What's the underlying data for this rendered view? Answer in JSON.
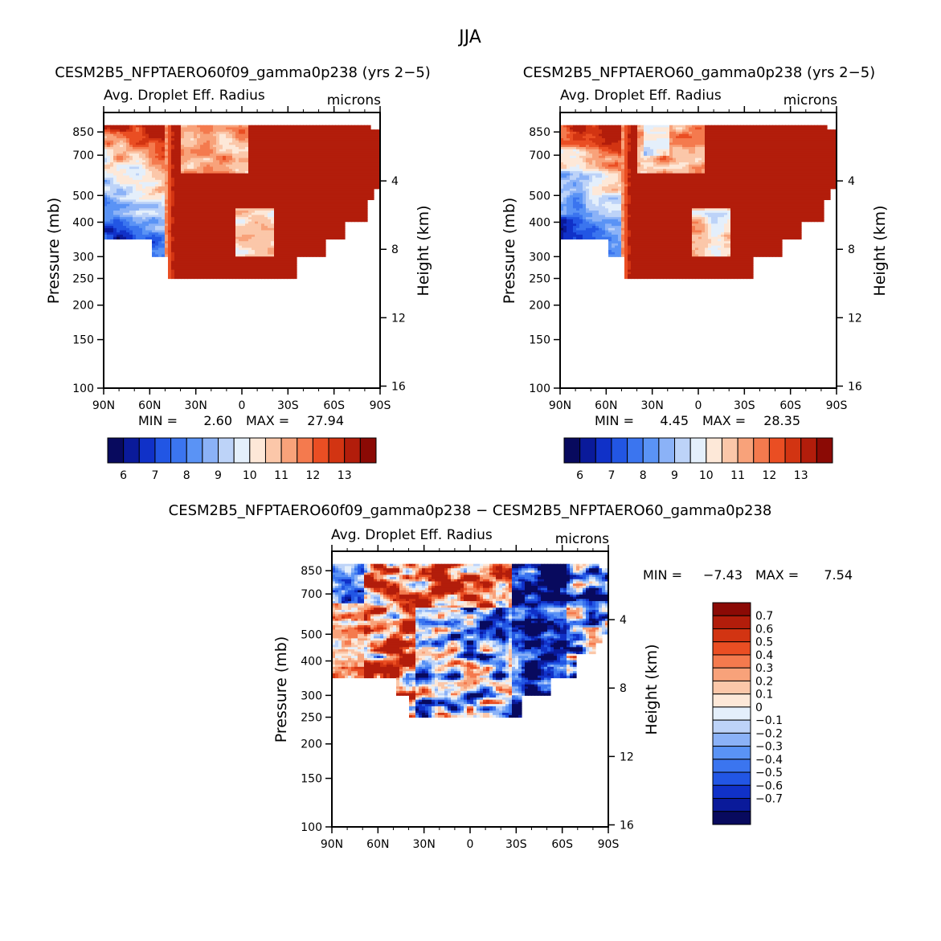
{
  "season": "JJA",
  "chart_data": [
    {
      "type": "heatmap",
      "panel": "case-a",
      "title": "CESM2B5_NFPTAERO60f09_gamma0p238 (yrs 2−5)",
      "variable": "Avg. Droplet Eff. Radius",
      "units": "microns",
      "ylabel": "Pressure (mb)",
      "ylabel_right": "Height (km)",
      "x_ticks": [
        "90N",
        "60N",
        "30N",
        "0",
        "30S",
        "60S",
        "90S"
      ],
      "y_ticks": [
        "100",
        "150",
        "200",
        "250",
        "300",
        "400",
        "500",
        "700",
        "850"
      ],
      "y_ticks_right": [
        "16",
        "12",
        "8",
        "4"
      ],
      "min_label": "MIN =",
      "min_value": "2.60",
      "max_label": "MAX =",
      "max_value": "27.94",
      "colorbar_levels": [
        6,
        6.5,
        7,
        7.5,
        8,
        8.5,
        9,
        9.5,
        10,
        10.5,
        11,
        11.5,
        12,
        12.5,
        13
      ],
      "colorbar_labels": [
        "6",
        "7",
        "8",
        "9",
        "10",
        "11",
        "12",
        "13"
      ]
    },
    {
      "type": "heatmap",
      "panel": "case-b",
      "title": "CESM2B5_NFPTAERO60_gamma0p238 (yrs 2−5)",
      "variable": "Avg. Droplet Eff. Radius",
      "units": "microns",
      "ylabel": "Pressure (mb)",
      "ylabel_right": "Height (km)",
      "x_ticks": [
        "90N",
        "60N",
        "30N",
        "0",
        "30S",
        "60S",
        "90S"
      ],
      "y_ticks": [
        "100",
        "150",
        "200",
        "250",
        "300",
        "400",
        "500",
        "700",
        "850"
      ],
      "y_ticks_right": [
        "16",
        "12",
        "8",
        "4"
      ],
      "min_label": "MIN =",
      "min_value": "4.45",
      "max_label": "MAX =",
      "max_value": "28.35",
      "colorbar_levels": [
        6,
        6.5,
        7,
        7.5,
        8,
        8.5,
        9,
        9.5,
        10,
        10.5,
        11,
        11.5,
        12,
        12.5,
        13
      ],
      "colorbar_labels": [
        "6",
        "7",
        "8",
        "9",
        "10",
        "11",
        "12",
        "13"
      ]
    },
    {
      "type": "heatmap",
      "panel": "difference",
      "title": "CESM2B5_NFPTAERO60f09_gamma0p238 − CESM2B5_NFPTAERO60_gamma0p238",
      "variable": "Avg. Droplet Eff. Radius",
      "units": "microns",
      "ylabel": "Pressure (mb)",
      "ylabel_right": "Height (km)",
      "x_ticks": [
        "90N",
        "60N",
        "30N",
        "0",
        "30S",
        "60S",
        "90S"
      ],
      "y_ticks": [
        "100",
        "150",
        "200",
        "250",
        "300",
        "400",
        "500",
        "700",
        "850"
      ],
      "y_ticks_right": [
        "16",
        "12",
        "8",
        "4"
      ],
      "min_label": "MIN =",
      "min_value": "−7.43",
      "max_label": "MAX =",
      "max_value": "7.54",
      "colorbar_levels": [
        -0.7,
        -0.6,
        -0.5,
        -0.4,
        -0.3,
        -0.2,
        -0.1,
        0,
        0.1,
        0.2,
        0.3,
        0.4,
        0.5,
        0.6,
        0.7
      ],
      "colorbar_labels": [
        "0.7",
        "0.6",
        "0.5",
        "0.4",
        "0.3",
        "0.2",
        "0.1",
        "0",
        "−0.1",
        "−0.2",
        "−0.3",
        "−0.4",
        "−0.5",
        "−0.6",
        "−0.7"
      ]
    }
  ],
  "colors": {
    "palette16": [
      "#080a5e",
      "#0a1a9a",
      "#1031c8",
      "#2256e4",
      "#3b75ef",
      "#5a93f5",
      "#8bb2f7",
      "#bdd3f8",
      "#e4effb",
      "#fde8d8",
      "#fbc7a9",
      "#f8a27a",
      "#f47a4e",
      "#ea4e23",
      "#d23412",
      "#b21d0b",
      "#8b0a05"
    ]
  }
}
